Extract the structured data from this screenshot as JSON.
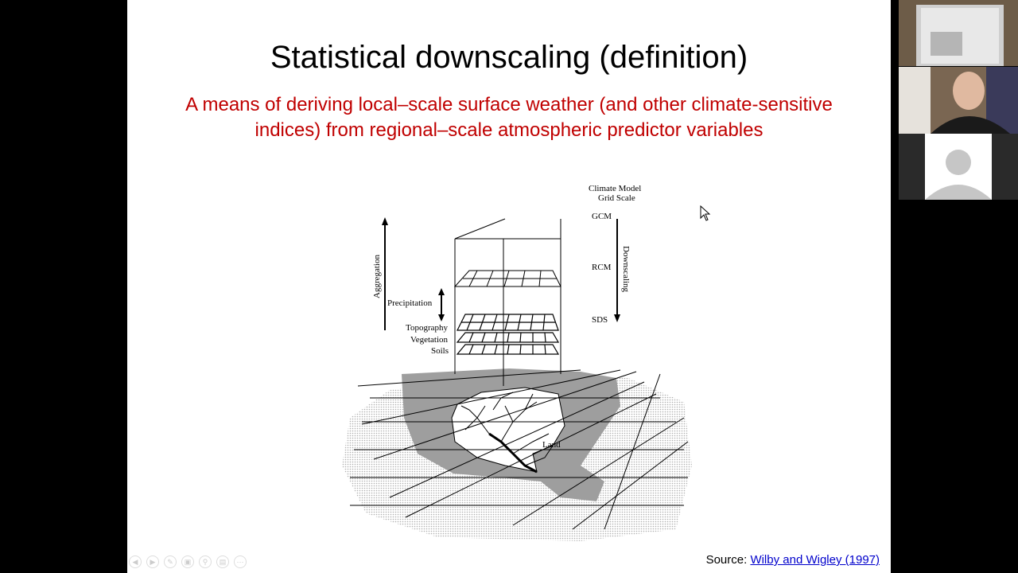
{
  "slide": {
    "title": "Statistical downscaling (definition)",
    "subtitle": "A means of deriving local–scale surface weather (and other climate-sensitive indices) from regional–scale atmospheric predictor variables",
    "source_prefix": "Source: ",
    "source_link": "Wilby and Wigley (1997)"
  },
  "diagram": {
    "header_line1": "Climate Model",
    "header_line2": "Grid Scale",
    "gcm": "GCM",
    "rcm": "RCM",
    "sds": "SDS",
    "downscaling": "Downscaling",
    "aggregation": "Aggregation",
    "precipitation": "Precipitation",
    "topography": "Topography",
    "vegetation": "Vegetation",
    "soils": "Soils",
    "land": "Land"
  },
  "colors": {
    "title_color": "#000000",
    "subtitle_color": "#c00000",
    "link_color": "#0000cc"
  },
  "icons": [
    "arrow-left-icon",
    "arrow-right-icon",
    "pen-icon",
    "copy-icon",
    "zoom-icon",
    "slides-icon",
    "more-icon"
  ]
}
